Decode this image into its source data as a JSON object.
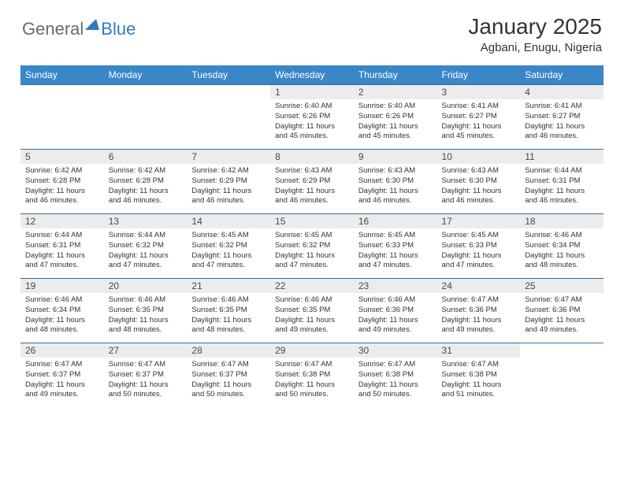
{
  "logo": {
    "part1": "General",
    "part2": "Blue"
  },
  "title": "January 2025",
  "location": "Agbani, Enugu, Nigeria",
  "colors": {
    "header_bg": "#3a87c8",
    "header_text": "#ffffff",
    "daynum_bg": "#ececec",
    "row_border": "#2f6ea5",
    "logo_gray": "#6b6b6b",
    "logo_blue": "#2f7abf"
  },
  "weekdays": [
    "Sunday",
    "Monday",
    "Tuesday",
    "Wednesday",
    "Thursday",
    "Friday",
    "Saturday"
  ],
  "labels": {
    "sunrise": "Sunrise: ",
    "sunset": "Sunset: ",
    "daylight": "Daylight: "
  },
  "weeks": [
    [
      null,
      null,
      null,
      {
        "d": "1",
        "sr": "6:40 AM",
        "ss": "6:26 PM",
        "dl": "11 hours and 45 minutes."
      },
      {
        "d": "2",
        "sr": "6:40 AM",
        "ss": "6:26 PM",
        "dl": "11 hours and 45 minutes."
      },
      {
        "d": "3",
        "sr": "6:41 AM",
        "ss": "6:27 PM",
        "dl": "11 hours and 45 minutes."
      },
      {
        "d": "4",
        "sr": "6:41 AM",
        "ss": "6:27 PM",
        "dl": "11 hours and 46 minutes."
      }
    ],
    [
      {
        "d": "5",
        "sr": "6:42 AM",
        "ss": "6:28 PM",
        "dl": "11 hours and 46 minutes."
      },
      {
        "d": "6",
        "sr": "6:42 AM",
        "ss": "6:28 PM",
        "dl": "11 hours and 46 minutes."
      },
      {
        "d": "7",
        "sr": "6:42 AM",
        "ss": "6:29 PM",
        "dl": "11 hours and 46 minutes."
      },
      {
        "d": "8",
        "sr": "6:43 AM",
        "ss": "6:29 PM",
        "dl": "11 hours and 46 minutes."
      },
      {
        "d": "9",
        "sr": "6:43 AM",
        "ss": "6:30 PM",
        "dl": "11 hours and 46 minutes."
      },
      {
        "d": "10",
        "sr": "6:43 AM",
        "ss": "6:30 PM",
        "dl": "11 hours and 46 minutes."
      },
      {
        "d": "11",
        "sr": "6:44 AM",
        "ss": "6:31 PM",
        "dl": "11 hours and 46 minutes."
      }
    ],
    [
      {
        "d": "12",
        "sr": "6:44 AM",
        "ss": "6:31 PM",
        "dl": "11 hours and 47 minutes."
      },
      {
        "d": "13",
        "sr": "6:44 AM",
        "ss": "6:32 PM",
        "dl": "11 hours and 47 minutes."
      },
      {
        "d": "14",
        "sr": "6:45 AM",
        "ss": "6:32 PM",
        "dl": "11 hours and 47 minutes."
      },
      {
        "d": "15",
        "sr": "6:45 AM",
        "ss": "6:32 PM",
        "dl": "11 hours and 47 minutes."
      },
      {
        "d": "16",
        "sr": "6:45 AM",
        "ss": "6:33 PM",
        "dl": "11 hours and 47 minutes."
      },
      {
        "d": "17",
        "sr": "6:45 AM",
        "ss": "6:33 PM",
        "dl": "11 hours and 47 minutes."
      },
      {
        "d": "18",
        "sr": "6:46 AM",
        "ss": "6:34 PM",
        "dl": "11 hours and 48 minutes."
      }
    ],
    [
      {
        "d": "19",
        "sr": "6:46 AM",
        "ss": "6:34 PM",
        "dl": "11 hours and 48 minutes."
      },
      {
        "d": "20",
        "sr": "6:46 AM",
        "ss": "6:35 PM",
        "dl": "11 hours and 48 minutes."
      },
      {
        "d": "21",
        "sr": "6:46 AM",
        "ss": "6:35 PM",
        "dl": "11 hours and 48 minutes."
      },
      {
        "d": "22",
        "sr": "6:46 AM",
        "ss": "6:35 PM",
        "dl": "11 hours and 49 minutes."
      },
      {
        "d": "23",
        "sr": "6:46 AM",
        "ss": "6:36 PM",
        "dl": "11 hours and 49 minutes."
      },
      {
        "d": "24",
        "sr": "6:47 AM",
        "ss": "6:36 PM",
        "dl": "11 hours and 49 minutes."
      },
      {
        "d": "25",
        "sr": "6:47 AM",
        "ss": "6:36 PM",
        "dl": "11 hours and 49 minutes."
      }
    ],
    [
      {
        "d": "26",
        "sr": "6:47 AM",
        "ss": "6:37 PM",
        "dl": "11 hours and 49 minutes."
      },
      {
        "d": "27",
        "sr": "6:47 AM",
        "ss": "6:37 PM",
        "dl": "11 hours and 50 minutes."
      },
      {
        "d": "28",
        "sr": "6:47 AM",
        "ss": "6:37 PM",
        "dl": "11 hours and 50 minutes."
      },
      {
        "d": "29",
        "sr": "6:47 AM",
        "ss": "6:38 PM",
        "dl": "11 hours and 50 minutes."
      },
      {
        "d": "30",
        "sr": "6:47 AM",
        "ss": "6:38 PM",
        "dl": "11 hours and 50 minutes."
      },
      {
        "d": "31",
        "sr": "6:47 AM",
        "ss": "6:38 PM",
        "dl": "11 hours and 51 minutes."
      },
      null
    ]
  ]
}
